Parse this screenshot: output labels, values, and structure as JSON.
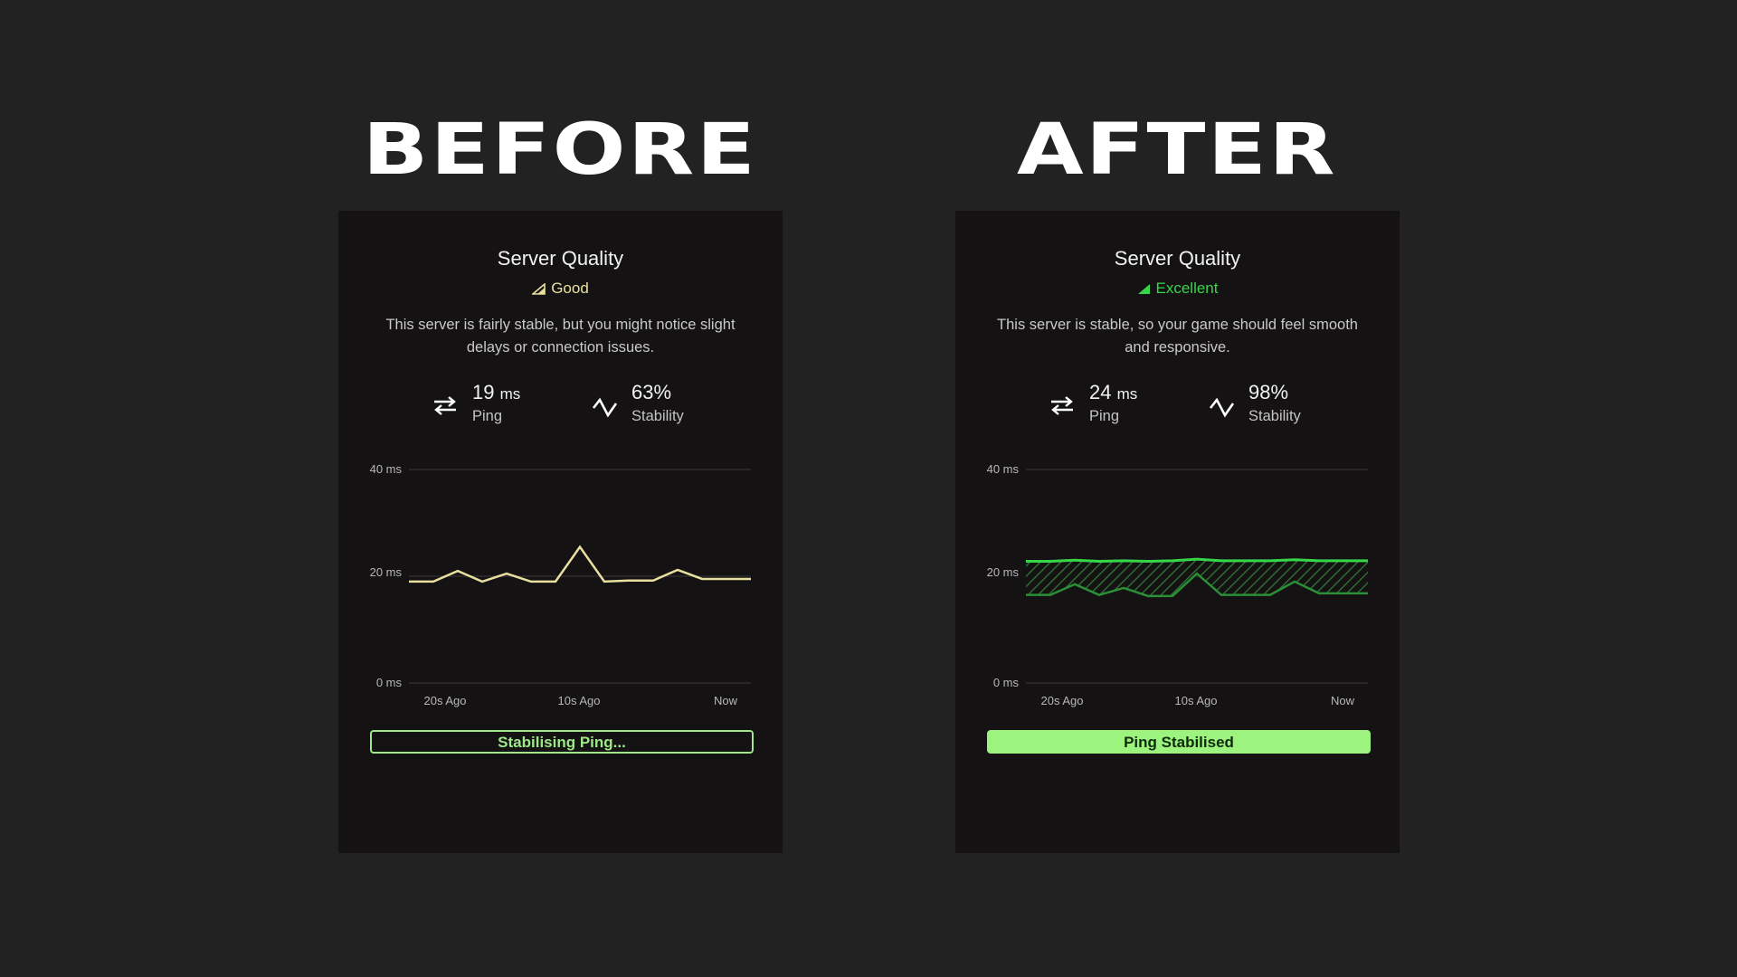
{
  "headings": {
    "before": "BEFORE",
    "after": "AFTER"
  },
  "colors": {
    "background": "#222222",
    "panel": "#141212",
    "good": "#e9e0a0",
    "excellent": "#36d64a",
    "status_green": "#9cf47f"
  },
  "before": {
    "title": "Server Quality",
    "quality_label": "Good",
    "quality_icon": "signal-icon",
    "description": "This server is fairly stable, but you might notice slight delays or connection issues.",
    "ping_value": "19",
    "ping_unit": "ms",
    "ping_label": "Ping",
    "ping_icon": "swap-arrows-icon",
    "stability_value": "63%",
    "stability_label": "Stability",
    "stability_icon": "zigzag-icon",
    "status": "Stabilising Ping..."
  },
  "after": {
    "title": "Server Quality",
    "quality_label": "Excellent",
    "quality_icon": "signal-icon",
    "description": "This server is stable, so your game should feel smooth and responsive.",
    "ping_value": "24",
    "ping_unit": "ms",
    "ping_label": "Ping",
    "ping_icon": "swap-arrows-icon",
    "stability_value": "98%",
    "stability_label": "Stability",
    "stability_icon": "zigzag-icon",
    "status": "Ping Stabilised"
  },
  "chart_data": [
    {
      "type": "line",
      "y_ticks": [
        "40 ms",
        "20 ms",
        "0 ms"
      ],
      "x_ticks": [
        "20s Ago",
        "10s Ago",
        "Now"
      ],
      "ylim": [
        0,
        40
      ],
      "grid": true,
      "series": [
        {
          "color": "#e9e0a0",
          "values": [
            19,
            19,
            21,
            19,
            20.5,
            19,
            19,
            25.5,
            19,
            19.2,
            19.2,
            21.2,
            19.5,
            19.5,
            19.5
          ]
        }
      ]
    },
    {
      "type": "area",
      "y_ticks": [
        "40 ms",
        "20 ms",
        "0 ms"
      ],
      "x_ticks": [
        "20s Ago",
        "10s Ago",
        "Now"
      ],
      "ylim": [
        0,
        40
      ],
      "grid": true,
      "series": [
        {
          "color": "#36d64a",
          "values": [
            22.8,
            22.8,
            23,
            22.8,
            22.9,
            22.8,
            22.9,
            23.2,
            22.9,
            22.9,
            22.9,
            23.1,
            22.9,
            22.9,
            22.9
          ]
        },
        {
          "color": "#2a8f36",
          "values": [
            16.5,
            16.5,
            18.5,
            16.5,
            17.8,
            16.3,
            16.3,
            20.5,
            16.5,
            16.5,
            16.5,
            19,
            16.8,
            16.8,
            16.8
          ]
        }
      ]
    }
  ]
}
